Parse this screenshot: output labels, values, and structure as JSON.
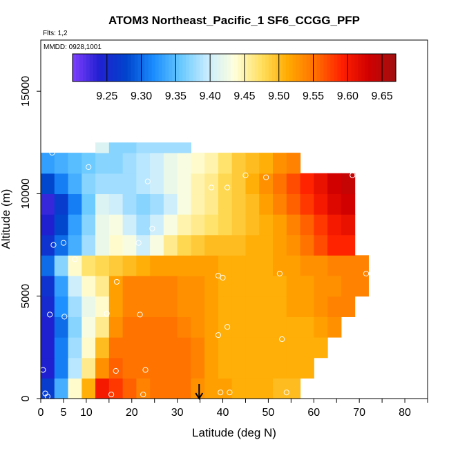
{
  "title": "ATOM3 Northeast_Pacific_1 SF6_CCGG_PFP",
  "flights_label": "Flts: 1,2",
  "date_label": "MMDD: 0928,1001",
  "chart_data": {
    "type": "heatmap",
    "title": "ATOM3 Northeast_Pacific_1 SF6_CCGG_PFP",
    "xlabel": "Latitude (deg N)",
    "ylabel": "Altitude (m)",
    "xlim": [
      0,
      85
    ],
    "ylim": [
      0,
      17500
    ],
    "x_ticks": [
      0,
      5,
      10,
      20,
      30,
      40,
      50,
      60,
      70,
      80
    ],
    "y_ticks": [
      0,
      5000,
      10000,
      15000
    ],
    "grid": false,
    "colorbar": {
      "position": "top-inside",
      "min": 9.2,
      "max": 9.67,
      "ticks": [
        9.25,
        9.3,
        9.35,
        9.4,
        9.45,
        9.5,
        9.55,
        9.6,
        9.65
      ],
      "colors": [
        "#7f3fff",
        "#2020d0",
        "#0044cc",
        "#1a8cff",
        "#66c8ff",
        "#c8ecff",
        "#ffffdd",
        "#ffe060",
        "#ffaa00",
        "#ff7000",
        "#ff2000",
        "#d00000",
        "#a01010"
      ]
    },
    "field": {
      "comment": "SF6 mole fraction (ppt) on a latitude x altitude grid; null = no data",
      "lat_edges": [
        0,
        3,
        6,
        9,
        12,
        15,
        18,
        21,
        24,
        27,
        30,
        33,
        36,
        39,
        42,
        45,
        48,
        51,
        54,
        57,
        60,
        63,
        66,
        69,
        72
      ],
      "alt_edges": [
        0,
        1000,
        2000,
        3000,
        4000,
        5000,
        6000,
        7000,
        8000,
        9000,
        10000,
        11000,
        12000,
        12500
      ],
      "values": [
        [
          9.27,
          9.34,
          9.44,
          9.51,
          9.6,
          9.58,
          9.56,
          9.54,
          9.55,
          9.55,
          9.55,
          9.53,
          9.52,
          9.52,
          9.51,
          9.51,
          9.51,
          9.5,
          9.5,
          null,
          null,
          null,
          null,
          null
        ],
        [
          9.24,
          9.31,
          9.39,
          9.46,
          9.53,
          9.56,
          9.55,
          9.55,
          9.55,
          9.55,
          9.55,
          9.54,
          9.52,
          9.51,
          9.51,
          9.51,
          9.51,
          9.51,
          9.51,
          9.51,
          null,
          null,
          null,
          null
        ],
        [
          9.24,
          9.31,
          9.38,
          9.44,
          9.5,
          9.55,
          9.55,
          9.55,
          9.55,
          9.55,
          9.55,
          9.54,
          9.52,
          9.51,
          9.51,
          9.51,
          9.51,
          9.51,
          9.51,
          9.51,
          9.51,
          null,
          null,
          null
        ],
        [
          9.24,
          9.3,
          9.37,
          9.43,
          9.46,
          9.53,
          9.55,
          9.55,
          9.55,
          9.55,
          9.54,
          9.53,
          9.52,
          9.51,
          9.51,
          9.51,
          9.51,
          9.51,
          9.51,
          9.51,
          9.52,
          9.53,
          null,
          null
        ],
        [
          9.25,
          9.32,
          9.38,
          9.42,
          9.44,
          9.52,
          9.54,
          9.54,
          9.54,
          9.54,
          9.53,
          9.53,
          9.52,
          9.51,
          9.51,
          9.51,
          9.51,
          9.51,
          9.52,
          9.52,
          9.53,
          9.54,
          9.54,
          null
        ],
        [
          9.26,
          9.33,
          9.4,
          9.44,
          9.46,
          9.52,
          9.54,
          9.54,
          9.54,
          9.54,
          9.53,
          9.53,
          9.52,
          9.51,
          9.51,
          9.51,
          9.51,
          9.51,
          9.52,
          9.52,
          9.53,
          9.53,
          9.54,
          9.54
        ],
        [
          9.3,
          9.37,
          9.44,
          9.47,
          9.48,
          9.49,
          9.5,
          9.51,
          9.52,
          9.52,
          9.52,
          9.52,
          9.52,
          9.51,
          9.51,
          9.51,
          9.51,
          9.52,
          9.52,
          9.53,
          9.53,
          9.54,
          9.54,
          9.54
        ],
        [
          9.26,
          9.3,
          9.34,
          9.38,
          9.42,
          9.44,
          9.43,
          9.4,
          9.43,
          9.46,
          9.48,
          9.49,
          9.5,
          9.5,
          9.5,
          9.51,
          9.51,
          9.52,
          9.53,
          9.55,
          9.57,
          9.59,
          9.59,
          null
        ],
        [
          9.24,
          9.28,
          9.33,
          9.37,
          9.42,
          9.43,
          9.4,
          9.38,
          9.4,
          9.43,
          9.45,
          9.46,
          9.47,
          9.48,
          9.49,
          9.5,
          9.51,
          9.52,
          9.54,
          9.56,
          9.58,
          9.6,
          9.61,
          null
        ],
        [
          9.23,
          9.27,
          9.31,
          9.36,
          9.41,
          9.4,
          9.38,
          9.37,
          9.38,
          9.4,
          9.43,
          9.45,
          9.46,
          9.48,
          9.49,
          9.5,
          9.52,
          9.54,
          9.56,
          9.58,
          9.6,
          9.62,
          9.63,
          null
        ],
        [
          9.28,
          9.31,
          9.34,
          9.37,
          9.38,
          9.38,
          9.38,
          9.39,
          9.4,
          9.42,
          9.43,
          9.45,
          9.46,
          9.48,
          9.49,
          9.51,
          9.53,
          9.55,
          9.57,
          9.59,
          9.61,
          9.63,
          9.64,
          null
        ],
        [
          9.33,
          9.34,
          9.35,
          9.36,
          9.37,
          9.37,
          9.38,
          9.39,
          9.4,
          9.42,
          9.43,
          9.44,
          9.45,
          9.47,
          9.49,
          9.5,
          9.51,
          9.53,
          9.54,
          null,
          null,
          null,
          null,
          null
        ],
        [
          null,
          null,
          null,
          null,
          9.41,
          9.37,
          9.37,
          9.38,
          9.38,
          9.38,
          9.38,
          null,
          null,
          null,
          null,
          null,
          null,
          null,
          null,
          null,
          null,
          null,
          null,
          null
        ]
      ]
    },
    "samples": [
      {
        "lat": 0.5,
        "alt": 1400
      },
      {
        "lat": 1.0,
        "alt": 250
      },
      {
        "lat": 1.5,
        "alt": 100
      },
      {
        "lat": 2.0,
        "alt": 4100
      },
      {
        "lat": 2.5,
        "alt": 12000
      },
      {
        "lat": 2.8,
        "alt": 7500
      },
      {
        "lat": 5.0,
        "alt": 7600
      },
      {
        "lat": 5.2,
        "alt": 4000
      },
      {
        "lat": 7.5,
        "alt": 6800
      },
      {
        "lat": 10.5,
        "alt": 11300
      },
      {
        "lat": 14.5,
        "alt": 4150
      },
      {
        "lat": 15.5,
        "alt": 200
      },
      {
        "lat": 16.5,
        "alt": 1350
      },
      {
        "lat": 16.7,
        "alt": 5700
      },
      {
        "lat": 21.5,
        "alt": 7600
      },
      {
        "lat": 21.8,
        "alt": 4100
      },
      {
        "lat": 22.5,
        "alt": 200
      },
      {
        "lat": 23.0,
        "alt": 1400
      },
      {
        "lat": 23.5,
        "alt": 10600
      },
      {
        "lat": 24.5,
        "alt": 8300
      },
      {
        "lat": 37.5,
        "alt": 10300
      },
      {
        "lat": 39.0,
        "alt": 6000
      },
      {
        "lat": 39.0,
        "alt": 3100
      },
      {
        "lat": 39.5,
        "alt": 300
      },
      {
        "lat": 40.0,
        "alt": 5900
      },
      {
        "lat": 41.0,
        "alt": 10300
      },
      {
        "lat": 41.0,
        "alt": 3500
      },
      {
        "lat": 41.5,
        "alt": 300
      },
      {
        "lat": 45.0,
        "alt": 10900
      },
      {
        "lat": 49.5,
        "alt": 10800
      },
      {
        "lat": 52.5,
        "alt": 6100
      },
      {
        "lat": 53.0,
        "alt": 2900
      },
      {
        "lat": 54.0,
        "alt": 300
      },
      {
        "lat": 58.5,
        "alt": 11300
      },
      {
        "lat": 68.5,
        "alt": 10900
      },
      {
        "lat": 71.5,
        "alt": 6100
      }
    ],
    "marker_latitude": 34.8
  }
}
